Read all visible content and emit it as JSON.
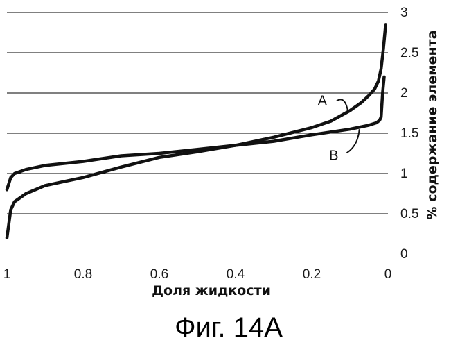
{
  "chart_data": {
    "type": "line",
    "title": "",
    "xlabel": "Доля жидкости",
    "ylabel": "% содержание элемента",
    "xlim": [
      1,
      0
    ],
    "ylim": [
      0,
      3
    ],
    "x_reversed": true,
    "y_axis_side": "right",
    "grid": "horizontal",
    "x_ticks": [
      "1",
      "0.8",
      "0.6",
      "0.4",
      "0.2",
      "0"
    ],
    "y_ticks": [
      "0",
      "0.5",
      "1",
      "1.5",
      "2",
      "2.5",
      "3"
    ],
    "series": [
      {
        "name": "A",
        "x": [
          1.0,
          0.99,
          0.98,
          0.95,
          0.9,
          0.85,
          0.8,
          0.7,
          0.6,
          0.5,
          0.4,
          0.3,
          0.2,
          0.15,
          0.1,
          0.07,
          0.05,
          0.035,
          0.025,
          0.018,
          0.012,
          0.006
        ],
        "y": [
          0.2,
          0.55,
          0.65,
          0.75,
          0.85,
          0.9,
          0.95,
          1.08,
          1.2,
          1.27,
          1.35,
          1.45,
          1.57,
          1.65,
          1.78,
          1.88,
          1.97,
          2.05,
          2.15,
          2.3,
          2.55,
          2.85
        ]
      },
      {
        "name": "B",
        "x": [
          1.0,
          0.99,
          0.98,
          0.95,
          0.9,
          0.8,
          0.7,
          0.6,
          0.5,
          0.4,
          0.3,
          0.2,
          0.1,
          0.05,
          0.03,
          0.022,
          0.018,
          0.014,
          0.01
        ],
        "y": [
          0.8,
          0.95,
          1.0,
          1.05,
          1.1,
          1.15,
          1.22,
          1.25,
          1.3,
          1.35,
          1.4,
          1.48,
          1.55,
          1.6,
          1.63,
          1.66,
          1.7,
          2.0,
          2.2
        ]
      }
    ],
    "colors": {
      "line": "#111111",
      "grid": "#000000",
      "text": "#111111"
    }
  },
  "caption": "Фиг. 14А"
}
